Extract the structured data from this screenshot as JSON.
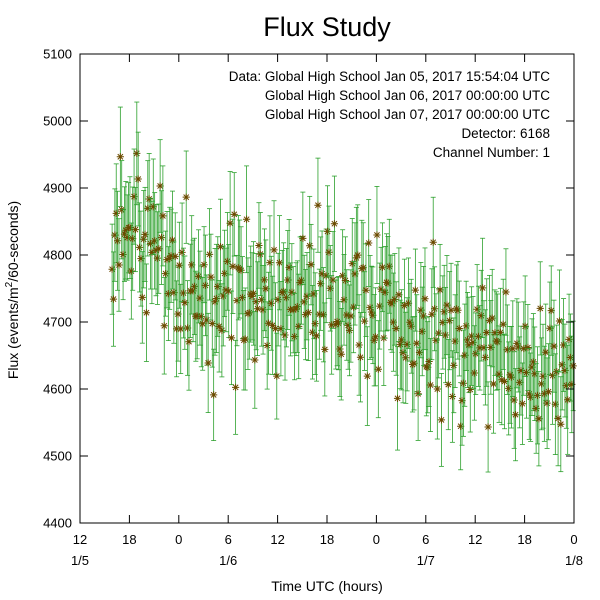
{
  "chart_data": {
    "type": "scatter",
    "title": "Flux Study",
    "xlabel": "Time UTC (hours)",
    "ylabel_main": "Flux (events/m",
    "ylabel_sup": "2",
    "ylabel_tail": "/60-seconds)",
    "xlim": [
      "2017-01-05 12:00",
      "2017-01-08 00:00"
    ],
    "ylim": [
      4400,
      5100
    ],
    "y_ticks": [
      4400,
      4500,
      4600,
      4700,
      4800,
      4900,
      5000,
      5100
    ],
    "x_ticks": [
      {
        "hour": "12",
        "date": "1/5"
      },
      {
        "hour": "18",
        "date": ""
      },
      {
        "hour": "0",
        "date": ""
      },
      {
        "hour": "6",
        "date": "1/6"
      },
      {
        "hour": "12",
        "date": ""
      },
      {
        "hour": "18",
        "date": ""
      },
      {
        "hour": "0",
        "date": ""
      },
      {
        "hour": "6",
        "date": "1/7"
      },
      {
        "hour": "12",
        "date": ""
      },
      {
        "hour": "18",
        "date": ""
      },
      {
        "hour": "0",
        "date": "1/8"
      }
    ],
    "grid": false,
    "marker": "star",
    "error_bars": true,
    "point_color": "#6b4a00",
    "errorbar_color": "#2ca02c",
    "series": [
      {
        "x_start": "2017-01-05 15:54",
        "x_end": "2017-01-08 00:00",
        "interval_minutes": 10,
        "trend": [
          {
            "x": "2017-01-05 15:54",
            "y": 4820
          },
          {
            "x": "2017-01-05 18:00",
            "y": 4860
          },
          {
            "x": "2017-01-06 00:00",
            "y": 4750
          },
          {
            "x": "2017-01-06 06:00",
            "y": 4720
          },
          {
            "x": "2017-01-06 12:00",
            "y": 4740
          },
          {
            "x": "2017-01-06 18:00",
            "y": 4745
          },
          {
            "x": "2017-01-07 00:00",
            "y": 4710
          },
          {
            "x": "2017-01-07 06:00",
            "y": 4670
          },
          {
            "x": "2017-01-07 12:00",
            "y": 4655
          },
          {
            "x": "2017-01-07 18:00",
            "y": 4630
          },
          {
            "x": "2017-01-08 00:00",
            "y": 4620
          }
        ],
        "scatter_sd": 55,
        "error_half_width": 70
      }
    ],
    "info_lines": [
      "Data: Global High School Jan 05, 2017 15:54:04 UTC",
      "Global High School Jan 06, 2017 00:00:00 UTC",
      "Global High School Jan 07, 2017 00:00:00 UTC",
      "Detector: 6168",
      "Channel Number: 1"
    ],
    "info_placement": "top-right"
  }
}
